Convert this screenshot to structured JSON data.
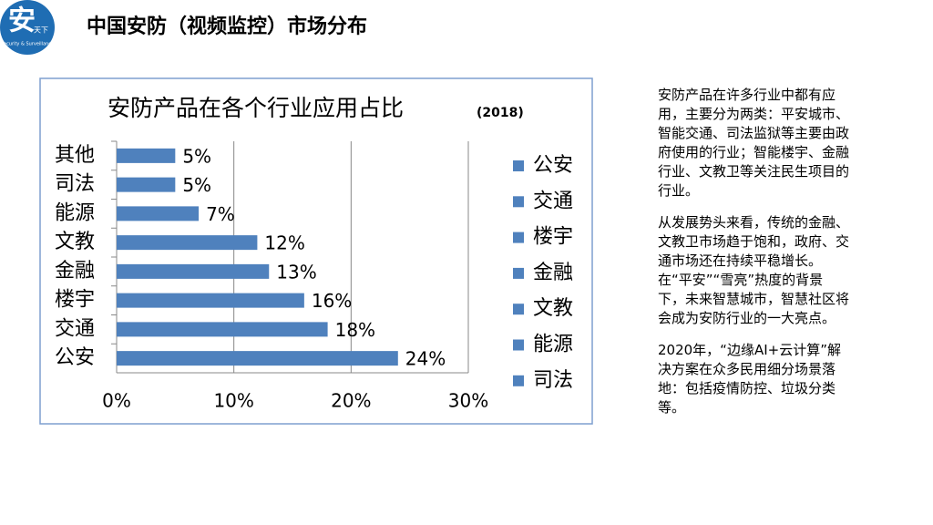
{
  "logo": {
    "char": "安",
    "tag": "天下",
    "subtitle": "Security & Surveillance"
  },
  "header": {
    "title": "中国安防（视频监控）市场分布"
  },
  "chart_data": {
    "type": "hbar",
    "title": "安防产品在各个行业应用占比",
    "subtitle": "(2018)",
    "categories": [
      "公安",
      "交通",
      "楼宇",
      "金融",
      "文教",
      "能源",
      "司法",
      "其他"
    ],
    "values": [
      24,
      18,
      16,
      13,
      12,
      7,
      5,
      5
    ],
    "value_labels": [
      "24%",
      "18%",
      "16%",
      "13%",
      "12%",
      "7%",
      "5%",
      "5%"
    ],
    "color": "#4f81bd",
    "xlim": [
      0,
      30
    ],
    "xticks": [
      {
        "value": 0,
        "label": "0%"
      },
      {
        "value": 10,
        "label": "10%"
      },
      {
        "value": 20,
        "label": "20%"
      },
      {
        "value": 30,
        "label": "30%"
      }
    ],
    "grid": true,
    "legend": [
      "公安",
      "交通",
      "楼宇",
      "金融",
      "文教",
      "能源",
      "司法"
    ]
  },
  "notes": [
    "安防产品在许多行业中都有应用，主要分为两类：平安城市、智能交通、司法监狱等主要由政府使用的行业；智能楼宇、金融行业、文教卫等关注民生项目的行业。",
    "从发展势头来看，传统的金融、文教卫市场趋于饱和，政府、交通市场还在持续平稳增长。在“平安”“雪亮”热度的背景下，未来智慧城市，智慧社区将会成为安防行业的一大亮点。",
    "2020年，“边缘AI+云计算”解决方案在众多民用细分场景落地：包括疫情防控、垃圾分类等。"
  ]
}
